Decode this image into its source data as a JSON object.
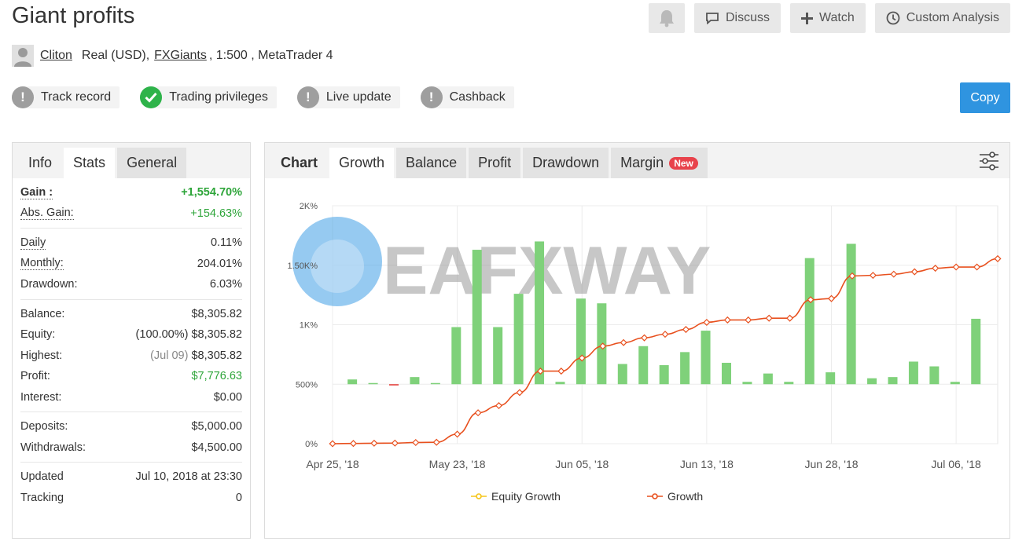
{
  "header": {
    "title": "Giant profits",
    "actions": {
      "discuss": "Discuss",
      "watch": "Watch",
      "custom_analysis": "Custom Analysis"
    },
    "owner": "Cliton",
    "account_type": "Real (USD),",
    "broker": "FXGiants",
    "account_details": ", 1:500 , MetaTrader 4"
  },
  "badges": [
    {
      "label": "Track record",
      "status": "warning"
    },
    {
      "label": "Trading privileges",
      "status": "ok"
    },
    {
      "label": "Live update",
      "status": "warning"
    },
    {
      "label": "Cashback",
      "status": "warning"
    }
  ],
  "copy_label": "Copy",
  "left_tabs": {
    "info": "Info",
    "stats": "Stats",
    "general": "General"
  },
  "stats": {
    "gain_label": "Gain :",
    "gain": "+1,554.70%",
    "abs_gain_label": "Abs. Gain:",
    "abs_gain": "+154.63%",
    "daily_label": "Daily",
    "daily": "0.11%",
    "monthly_label": "Monthly:",
    "monthly": "204.01%",
    "drawdown_label": "Drawdown:",
    "drawdown": "6.03%",
    "balance_label": "Balance:",
    "balance": "$8,305.82",
    "equity_label": "Equity:",
    "equity_pct": "(100.00%)",
    "equity": "$8,305.82",
    "highest_label": "Highest:",
    "highest_date": "(Jul 09)",
    "highest": "$8,305.82",
    "profit_label": "Profit:",
    "profit": "$7,776.63",
    "interest_label": "Interest:",
    "interest": "$0.00",
    "deposits_label": "Deposits:",
    "deposits": "$5,000.00",
    "withdrawals_label": "Withdrawals:",
    "withdrawals": "$4,500.00",
    "updated_label": "Updated",
    "updated": "Jul 10, 2018 at 23:30",
    "tracking_label": "Tracking",
    "tracking": "0"
  },
  "chart_tabs": {
    "chart": "Chart",
    "growth": "Growth",
    "balance": "Balance",
    "profit": "Profit",
    "drawdown": "Drawdown",
    "margin": "Margin",
    "new_badge": "New"
  },
  "watermark": "EAFXWAY",
  "colors": {
    "green_bar": "#7fd17a",
    "red_bar": "#e53935",
    "growth_line": "#e8501e",
    "equity_line": "#f5c518",
    "accent": "#2f94e0"
  },
  "chart_data": {
    "type": "bar+line",
    "x_tick_labels": [
      "Apr 25, '18",
      "May 23, '18",
      "Jun 05, '18",
      "Jun 13, '18",
      "Jun 28, '18",
      "Jul 06, '18"
    ],
    "x_tick_indices": [
      0,
      6,
      12,
      18,
      24,
      30
    ],
    "y_tick_labels": [
      "0%",
      "500%",
      "1K%",
      "1.50K%",
      "2K%"
    ],
    "ylim": [
      0,
      2000
    ],
    "y_baseline": 500,
    "grid": true,
    "legend": {
      "position": "bottom",
      "entries": [
        "Equity Growth",
        "Growth"
      ]
    },
    "series": [
      {
        "name": "Growth",
        "kind": "line",
        "values": [
          0,
          2,
          4,
          5,
          10,
          12,
          80,
          260,
          320,
          430,
          610,
          610,
          720,
          820,
          850,
          890,
          920,
          960,
          1020,
          1040,
          1040,
          1055,
          1055,
          1210,
          1220,
          1410,
          1415,
          1425,
          1445,
          1475,
          1485,
          1485,
          1555
        ]
      },
      {
        "name": "daily",
        "kind": "bar",
        "values": [
          540,
          510,
          490,
          560,
          510,
          980,
          1630,
          980,
          1260,
          1700,
          520,
          1220,
          1180,
          670,
          820,
          660,
          770,
          950,
          680,
          520,
          590,
          520,
          1560,
          600,
          1680,
          550,
          560,
          690,
          650,
          520,
          1050
        ]
      }
    ]
  }
}
